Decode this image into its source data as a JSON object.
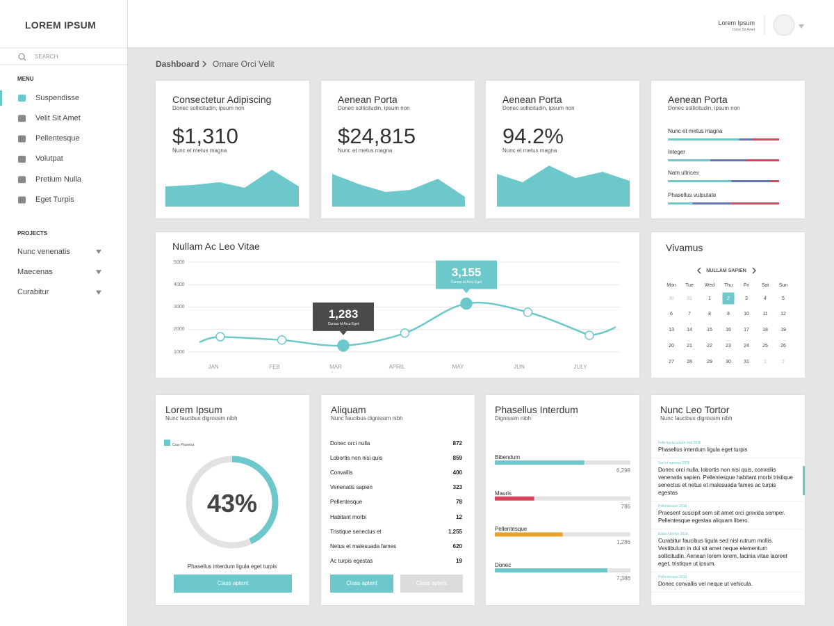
{
  "sidebar": {
    "brand": "LOREM IPSUM",
    "search": "SEARCH",
    "menu_title": "MENU",
    "menu": [
      "Suspendisse",
      "Velit Sit Amet",
      "Pellentesque",
      "Volutpat",
      "Pretium Nulla",
      "Eget Turpis"
    ],
    "projects_title": "PROJECTS",
    "projects": [
      "Nunc venenatis",
      "Maecenas",
      "Curabitur"
    ]
  },
  "header": {
    "user_name": "Lorem Ipsum",
    "user_subtitle": "Dolor Sit Amet"
  },
  "breadcrumb": [
    "Dashboard",
    "Ornare Orci Velit"
  ],
  "stats": [
    {
      "title": "Consectetur Adipiscing",
      "subtitle": "Donec sollicitudin, ipsum non",
      "value": "$1,310",
      "caption": "Nunc et metus magna"
    },
    {
      "title": "Aenean Porta",
      "subtitle": "Donec sollicitudin, ipsum non",
      "value": "$24,815",
      "caption": "Nunc et metus magna"
    },
    {
      "title": "Aenean Porta",
      "subtitle": "Donec sollicitudin, ipsum non",
      "value": "94.2%",
      "caption": "Nunc et metus magna"
    }
  ],
  "segments_card": {
    "title": "Aenean Porta",
    "subtitle": "Donec sollicitudin, ipsum non",
    "colors": [
      "#6cc8cb",
      "#6674b8",
      "#d9455f"
    ],
    "rows": [
      {
        "label": "Nunc et metus magna",
        "values": [
          64,
          12,
          24
        ]
      },
      {
        "label": "Integer",
        "values": [
          38,
          32,
          30
        ]
      },
      {
        "label": "Nam ultrices",
        "values": [
          57,
          34,
          9
        ]
      },
      {
        "label": "Phasellus vulputate",
        "values": [
          22,
          35,
          43
        ]
      }
    ]
  },
  "line_chart": {
    "type": "line",
    "title": "Nullam Ac Leo Vitae",
    "categories": [
      "JAN",
      "FEB",
      "MAR",
      "APRIL",
      "MAY",
      "JUN",
      "JULY"
    ],
    "series": [
      {
        "color": "#6cc8cb",
        "values": [
          1680,
          1530,
          1283,
          1840,
          3155,
          2770,
          1740
        ],
        "value_labels": [
          null,
          null,
          "1,283",
          null,
          "3,155",
          null,
          null
        ],
        "value_label_captions": [
          null,
          null,
          "Cursus Id Arcu Eget",
          null,
          "Cursus Id Arcu Eget",
          null,
          null
        ],
        "value_label_colors": [
          null,
          null,
          "#4a4a4a",
          null,
          "#6cc8cb",
          null,
          null
        ]
      }
    ],
    "ylim": [
      1000,
      5000
    ],
    "yticks": [
      1000,
      2000,
      3000,
      4000,
      5000
    ],
    "grid": true
  },
  "calendar": {
    "title": "Vivamus",
    "month": "NULLAM SAPIEN",
    "weekdays": [
      "Mon",
      "Tue",
      "Wed",
      "Thu",
      "Fri",
      "Sat",
      "Sun"
    ],
    "weeks": [
      [
        30,
        31,
        1,
        2,
        3,
        4,
        5
      ],
      [
        6,
        7,
        8,
        9,
        10,
        11,
        12
      ],
      [
        13,
        14,
        15,
        16,
        17,
        18,
        19
      ],
      [
        20,
        21,
        22,
        23,
        24,
        25,
        26
      ],
      [
        27,
        28,
        29,
        30,
        31,
        1,
        2
      ]
    ],
    "selected_day": 2
  },
  "donut": {
    "title": "Lorem Ipsum",
    "subtitle": "Nunc faucibus dignissim nibh",
    "legend": "Cras Pharetra",
    "value": 43,
    "value_label": "43%",
    "color": "#6cc8cb",
    "caption": "Phasellus interdum ligula eget turpis",
    "button": "Class aptent"
  },
  "list": {
    "title": "Aliquam",
    "subtitle": "Nunc faucibus dignissim nibh",
    "rows": [
      [
        "Donec orci nulla",
        "872"
      ],
      [
        "Lobortis non nisi quis",
        "859"
      ],
      [
        "Convallis",
        "400"
      ],
      [
        "Venenatis sapien",
        "323"
      ],
      [
        "Pellentesque",
        "78"
      ],
      [
        "Habitant morbi",
        "12"
      ],
      [
        "Tristique senectus et",
        "1,255"
      ],
      [
        "Netus et malesuada fames",
        "620"
      ],
      [
        "Ac turpis egestas",
        "19"
      ]
    ],
    "buttons": [
      "Class aptent",
      "Class aptent"
    ]
  },
  "progress": {
    "title": "Phasellus Interdum",
    "subtitle": "Dignissim nibh",
    "rows": [
      {
        "label": "Bibendum",
        "value": "6,298",
        "fill": 66,
        "color": "#6cc8cb"
      },
      {
        "label": "Mauris",
        "value": "786",
        "fill": 29,
        "color": "#d9455f"
      },
      {
        "label": "Pellentesque",
        "value": "1,286",
        "fill": 50,
        "color": "#e8a22e"
      },
      {
        "label": "Donec",
        "value": "7,386",
        "fill": 83,
        "color": "#6cc8cb"
      }
    ]
  },
  "feed": {
    "title": "Nunc Leo Tortor",
    "subtitle": "Nunc faucibus dignissim nibh",
    "items": [
      {
        "meta": "Felis ligula rutrum sed 2016",
        "text": "Phasellus interdum ligula eget turpis"
      },
      {
        "meta": "Sed id egestas 2016",
        "text": "Donec orci nulla, lobortis non nisi quis, convallis venenatis sapien. Pellentesque habitant morbi tristique senectus et netus et malesuada fames ac turpis egestas"
      },
      {
        "meta": "Pellentesque 2016",
        "text": "Praesent suscipit sem sit amet orci gravida semper. Pellentesque egestas aliquam libero."
      },
      {
        "meta": "Etiam lobortis 2016",
        "text": "Curabitur faucibus ligula sed nisl rutrum mollis. Vestibulum in dui sit amet neque elementum sollicitudin. Aenean lorem lorem, lacinia vitae laoreet eget, tristique ut ipsum."
      },
      {
        "meta": "Pellentesque 2016",
        "text": "Donec convallis vel neque ut vehicula."
      }
    ]
  }
}
